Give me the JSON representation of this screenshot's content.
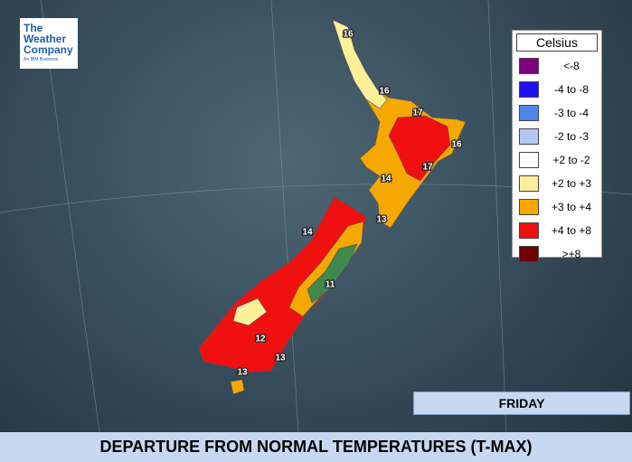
{
  "logo": {
    "name": "The Weather Company",
    "tagline": "An IBM Business"
  },
  "legend": {
    "title": "Celsius",
    "items": [
      {
        "label": "<-8",
        "color": "#800080"
      },
      {
        "label": "-4 to -8",
        "color": "#1e10f0"
      },
      {
        "label": "-3 to -4",
        "color": "#4f86e8"
      },
      {
        "label": "-2 to -3",
        "color": "#b3c8f5"
      },
      {
        "label": "+2 to -2",
        "color": "#ffffff"
      },
      {
        "label": "+2 to +3",
        "color": "#faf09a"
      },
      {
        "label": "+3 to +4",
        "color": "#f5a800"
      },
      {
        "label": "+4 to +8",
        "color": "#f01010"
      },
      {
        "label": ">+8",
        "color": "#6e0000"
      }
    ]
  },
  "temperature_labels": [
    16,
    16,
    17,
    16,
    17,
    14,
    13,
    14,
    11,
    12,
    13,
    13
  ],
  "day": "FRIDAY",
  "title": "DEPARTURE FROM NORMAL TEMPERATURES (T-MAX)"
}
